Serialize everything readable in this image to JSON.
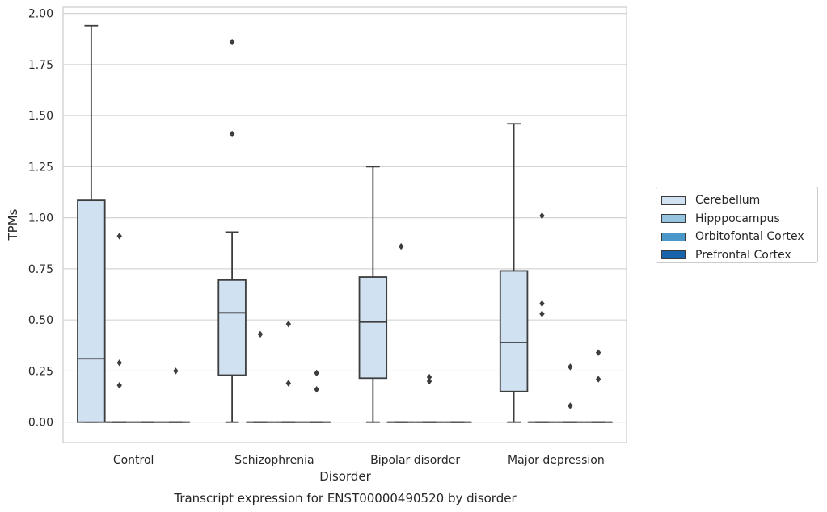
{
  "chart_data": {
    "type": "box",
    "title": "Transcript expression for ENST00000490520 by disorder",
    "xlabel": "Disorder",
    "ylabel": "TPMs",
    "ylim": [
      -0.1,
      2.03
    ],
    "yticks": [
      "0.00",
      "0.25",
      "0.50",
      "0.75",
      "1.00",
      "1.25",
      "1.50",
      "1.75",
      "2.00"
    ],
    "grid": true,
    "legend_position": "right",
    "categories": [
      "Control",
      "Schizophrenia",
      "Bipolar disorder",
      "Major depression"
    ],
    "series": [
      {
        "name": "Cerebellum",
        "color": "#d0e1f2",
        "boxes": [
          {
            "whislo": 0.0,
            "q1": 0.0,
            "med": 0.31,
            "q3": 1.085,
            "whishi": 1.94,
            "fliers": []
          },
          {
            "whislo": 0.0,
            "q1": 0.23,
            "med": 0.535,
            "q3": 0.695,
            "whishi": 0.93,
            "fliers": [
              1.41,
              1.86
            ]
          },
          {
            "whislo": 0.0,
            "q1": 0.215,
            "med": 0.49,
            "q3": 0.71,
            "whishi": 1.25,
            "fliers": []
          },
          {
            "whislo": 0.0,
            "q1": 0.15,
            "med": 0.39,
            "q3": 0.74,
            "whishi": 1.46,
            "fliers": []
          }
        ]
      },
      {
        "name": "Hipppocampus",
        "color": "#94c4df",
        "boxes": [
          {
            "whislo": 0.0,
            "q1": 0.0,
            "med": 0.0,
            "q3": 0.0,
            "whishi": 0.0,
            "fliers": [
              0.18,
              0.29,
              0.91
            ]
          },
          {
            "whislo": 0.0,
            "q1": 0.0,
            "med": 0.0,
            "q3": 0.0,
            "whishi": 0.0,
            "fliers": [
              0.43
            ]
          },
          {
            "whislo": 0.0,
            "q1": 0.0,
            "med": 0.0,
            "q3": 0.0,
            "whishi": 0.0,
            "fliers": [
              0.86
            ]
          },
          {
            "whislo": 0.0,
            "q1": 0.0,
            "med": 0.0,
            "q3": 0.0,
            "whishi": 0.0,
            "fliers": [
              0.53,
              0.58,
              1.01
            ]
          }
        ]
      },
      {
        "name": "Orbitofontal Cortex",
        "color": "#4a98c9",
        "boxes": [
          {
            "whislo": 0.0,
            "q1": 0.0,
            "med": 0.0,
            "q3": 0.0,
            "whishi": 0.0,
            "fliers": []
          },
          {
            "whislo": 0.0,
            "q1": 0.0,
            "med": 0.0,
            "q3": 0.0,
            "whishi": 0.0,
            "fliers": [
              0.19,
              0.48
            ]
          },
          {
            "whislo": 0.0,
            "q1": 0.0,
            "med": 0.0,
            "q3": 0.0,
            "whishi": 0.0,
            "fliers": [
              0.2,
              0.22
            ]
          },
          {
            "whislo": 0.0,
            "q1": 0.0,
            "med": 0.0,
            "q3": 0.0,
            "whishi": 0.0,
            "fliers": [
              0.08,
              0.27
            ]
          }
        ]
      },
      {
        "name": "Prefrontal Cortex",
        "color": "#1764ab",
        "boxes": [
          {
            "whislo": 0.0,
            "q1": 0.0,
            "med": 0.0,
            "q3": 0.0,
            "whishi": 0.0,
            "fliers": [
              0.25
            ]
          },
          {
            "whislo": 0.0,
            "q1": 0.0,
            "med": 0.0,
            "q3": 0.0,
            "whishi": 0.0,
            "fliers": [
              0.16,
              0.24
            ]
          },
          {
            "whislo": 0.0,
            "q1": 0.0,
            "med": 0.0,
            "q3": 0.0,
            "whishi": 0.0,
            "fliers": []
          },
          {
            "whislo": 0.0,
            "q1": 0.0,
            "med": 0.0,
            "q3": 0.0,
            "whishi": 0.0,
            "fliers": [
              0.21,
              0.34
            ]
          }
        ]
      }
    ]
  }
}
